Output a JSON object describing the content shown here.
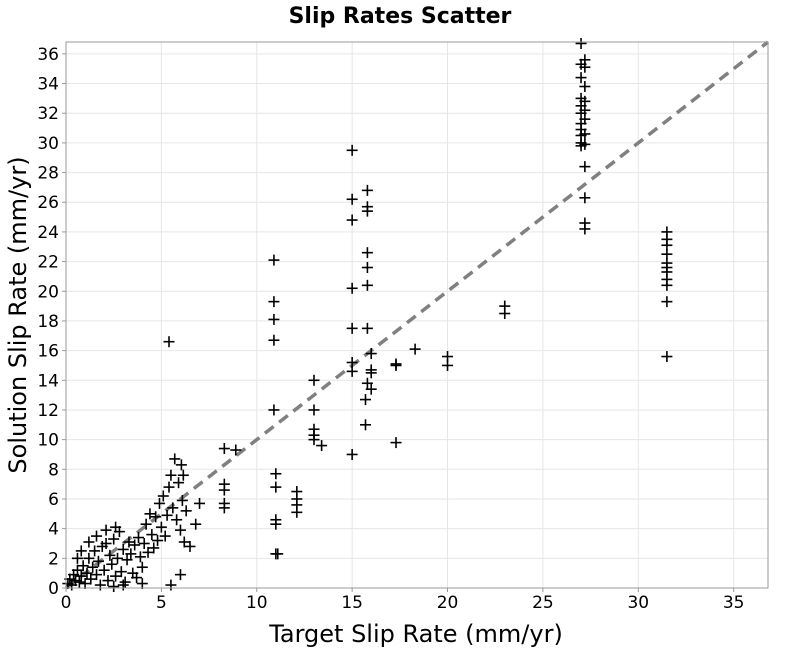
{
  "chart_data": {
    "type": "scatter",
    "title": "Slip Rates Scatter",
    "xlabel": "Target Slip Rate (mm/yr)",
    "ylabel": "Solution Slip Rate (mm/yr)",
    "xlim": [
      0,
      36.8
    ],
    "ylim": [
      0,
      36.8
    ],
    "x_ticks": [
      0,
      5,
      10,
      15,
      20,
      25,
      30,
      35
    ],
    "y_ticks": [
      0,
      2,
      4,
      6,
      8,
      10,
      12,
      14,
      16,
      18,
      20,
      22,
      24,
      26,
      28,
      30,
      32,
      34,
      36
    ],
    "grid": true,
    "marker": "plus",
    "marker_color": "#000000",
    "reference_line": {
      "style": "dashed",
      "color": "#808080",
      "from": [
        0,
        0
      ],
      "to": [
        36.8,
        36.8
      ]
    },
    "series": [
      {
        "points": [
          [
            0.1,
            0.3
          ],
          [
            0.2,
            0.6
          ],
          [
            0.3,
            0.2
          ],
          [
            0.4,
            0.9
          ],
          [
            0.5,
            0.5
          ],
          [
            0.6,
            1.2
          ],
          [
            0.7,
            0.4
          ],
          [
            0.8,
            0.8
          ],
          [
            0.9,
            1.5
          ],
          [
            1.0,
            0.3
          ],
          [
            1.1,
            1.0
          ],
          [
            1.2,
            2.0
          ],
          [
            1.3,
            0.6
          ],
          [
            1.4,
            1.4
          ],
          [
            1.5,
            2.5
          ],
          [
            1.6,
            0.9
          ],
          [
            1.7,
            1.8
          ],
          [
            1.8,
            0.2
          ],
          [
            1.9,
            2.8
          ],
          [
            2.0,
            1.2
          ],
          [
            2.1,
            3.0
          ],
          [
            2.2,
            0.5
          ],
          [
            2.3,
            2.2
          ],
          [
            2.4,
            1.6
          ],
          [
            2.5,
            3.3
          ],
          [
            2.6,
            0.8
          ],
          [
            2.7,
            2.0
          ],
          [
            2.8,
            3.8
          ],
          [
            2.9,
            1.1
          ],
          [
            3.0,
            2.6
          ],
          [
            3.1,
            0.4
          ],
          [
            3.2,
            1.9
          ],
          [
            3.3,
            3.1
          ],
          [
            3.4,
            2.3
          ],
          [
            3.5,
            1.0
          ],
          [
            3.6,
            2.9
          ],
          [
            3.7,
            0.7
          ],
          [
            3.8,
            3.4
          ],
          [
            3.9,
            2.1
          ],
          [
            4.0,
            1.4
          ],
          [
            4.1,
            3.0
          ],
          [
            4.2,
            4.3
          ],
          [
            4.3,
            2.4
          ],
          [
            4.4,
            5.0
          ],
          [
            4.5,
            3.6
          ],
          [
            4.6,
            2.7
          ],
          [
            4.7,
            4.8
          ],
          [
            4.8,
            3.2
          ],
          [
            4.9,
            5.7
          ],
          [
            5.0,
            4.1
          ],
          [
            5.1,
            6.2
          ],
          [
            5.2,
            3.5
          ],
          [
            5.3,
            4.9
          ],
          [
            5.4,
            6.8
          ],
          [
            5.5,
            7.6
          ],
          [
            5.6,
            5.4
          ],
          [
            5.7,
            8.7
          ],
          [
            5.8,
            4.6
          ],
          [
            5.9,
            7.1
          ],
          [
            6.0,
            3.9
          ],
          [
            6.05,
            8.3
          ],
          [
            6.1,
            5.9
          ],
          [
            6.15,
            7.6
          ],
          [
            6.2,
            3.1
          ],
          [
            6.3,
            5.2
          ],
          [
            6.5,
            2.8
          ],
          [
            6.8,
            4.3
          ],
          [
            7.0,
            5.7
          ],
          [
            5.4,
            16.6
          ],
          [
            5.5,
            0.2
          ],
          [
            6.0,
            0.9
          ],
          [
            3.0,
            0.2
          ],
          [
            2.5,
            0.1
          ],
          [
            4.0,
            0.3
          ],
          [
            0.6,
            2.0
          ],
          [
            0.8,
            2.5
          ],
          [
            1.2,
            3.1
          ],
          [
            1.6,
            3.5
          ],
          [
            2.1,
            3.9
          ],
          [
            2.6,
            4.1
          ],
          [
            8.3,
            9.4
          ],
          [
            8.3,
            7.0
          ],
          [
            8.3,
            6.6
          ],
          [
            8.3,
            5.7
          ],
          [
            8.3,
            5.4
          ],
          [
            8.9,
            9.3
          ],
          [
            10.9,
            22.1
          ],
          [
            10.9,
            19.3
          ],
          [
            10.9,
            18.1
          ],
          [
            10.9,
            16.7
          ],
          [
            10.9,
            12.0
          ],
          [
            11.0,
            7.7
          ],
          [
            11.0,
            6.8
          ],
          [
            11.0,
            4.6
          ],
          [
            11.0,
            4.3
          ],
          [
            11.0,
            2.3
          ],
          [
            11.1,
            2.3
          ],
          [
            12.1,
            6.5
          ],
          [
            12.1,
            6.0
          ],
          [
            12.1,
            5.6
          ],
          [
            12.1,
            5.1
          ],
          [
            13.0,
            14.0
          ],
          [
            13.0,
            12.0
          ],
          [
            13.0,
            10.7
          ],
          [
            13.0,
            10.3
          ],
          [
            13.0,
            10.0
          ],
          [
            13.4,
            9.6
          ],
          [
            15.0,
            29.5
          ],
          [
            15.0,
            26.2
          ],
          [
            15.0,
            24.8
          ],
          [
            15.0,
            20.2
          ],
          [
            15.0,
            17.5
          ],
          [
            15.0,
            15.2
          ],
          [
            15.0,
            14.6
          ],
          [
            15.0,
            9.0
          ],
          [
            15.8,
            26.8
          ],
          [
            15.8,
            25.7
          ],
          [
            15.8,
            25.4
          ],
          [
            15.8,
            22.6
          ],
          [
            15.8,
            21.6
          ],
          [
            15.8,
            20.4
          ],
          [
            15.8,
            17.5
          ],
          [
            15.8,
            13.8
          ],
          [
            15.7,
            12.7
          ],
          [
            15.7,
            11.0
          ],
          [
            16.0,
            15.8
          ],
          [
            16.0,
            14.7
          ],
          [
            16.0,
            14.5
          ],
          [
            16.0,
            13.4
          ],
          [
            17.3,
            15.1
          ],
          [
            17.3,
            15.0
          ],
          [
            17.3,
            9.8
          ],
          [
            18.3,
            16.1
          ],
          [
            20.0,
            15.6
          ],
          [
            20.0,
            15.0
          ],
          [
            23.0,
            19.0
          ],
          [
            23.0,
            18.5
          ],
          [
            27.0,
            36.7
          ],
          [
            27.0,
            35.3
          ],
          [
            27.0,
            34.4
          ],
          [
            27.0,
            33.0
          ],
          [
            27.0,
            32.5
          ],
          [
            27.0,
            32.0
          ],
          [
            27.0,
            31.3
          ],
          [
            27.0,
            30.9
          ],
          [
            27.0,
            30.5
          ],
          [
            27.0,
            30.0
          ],
          [
            27.0,
            29.8
          ],
          [
            27.2,
            35.6
          ],
          [
            27.2,
            35.1
          ],
          [
            27.2,
            33.8
          ],
          [
            27.2,
            32.8
          ],
          [
            27.2,
            32.2
          ],
          [
            27.2,
            31.6
          ],
          [
            27.2,
            30.6
          ],
          [
            27.2,
            29.9
          ],
          [
            27.2,
            28.4
          ],
          [
            27.2,
            26.3
          ],
          [
            27.2,
            24.6
          ],
          [
            27.2,
            24.2
          ],
          [
            31.5,
            24.0
          ],
          [
            31.5,
            23.5
          ],
          [
            31.5,
            23.1
          ],
          [
            31.5,
            22.5
          ],
          [
            31.5,
            21.9
          ],
          [
            31.5,
            21.6
          ],
          [
            31.5,
            21.3
          ],
          [
            31.5,
            20.8
          ],
          [
            31.5,
            20.4
          ],
          [
            31.5,
            19.3
          ],
          [
            31.5,
            15.6
          ]
        ]
      }
    ]
  }
}
